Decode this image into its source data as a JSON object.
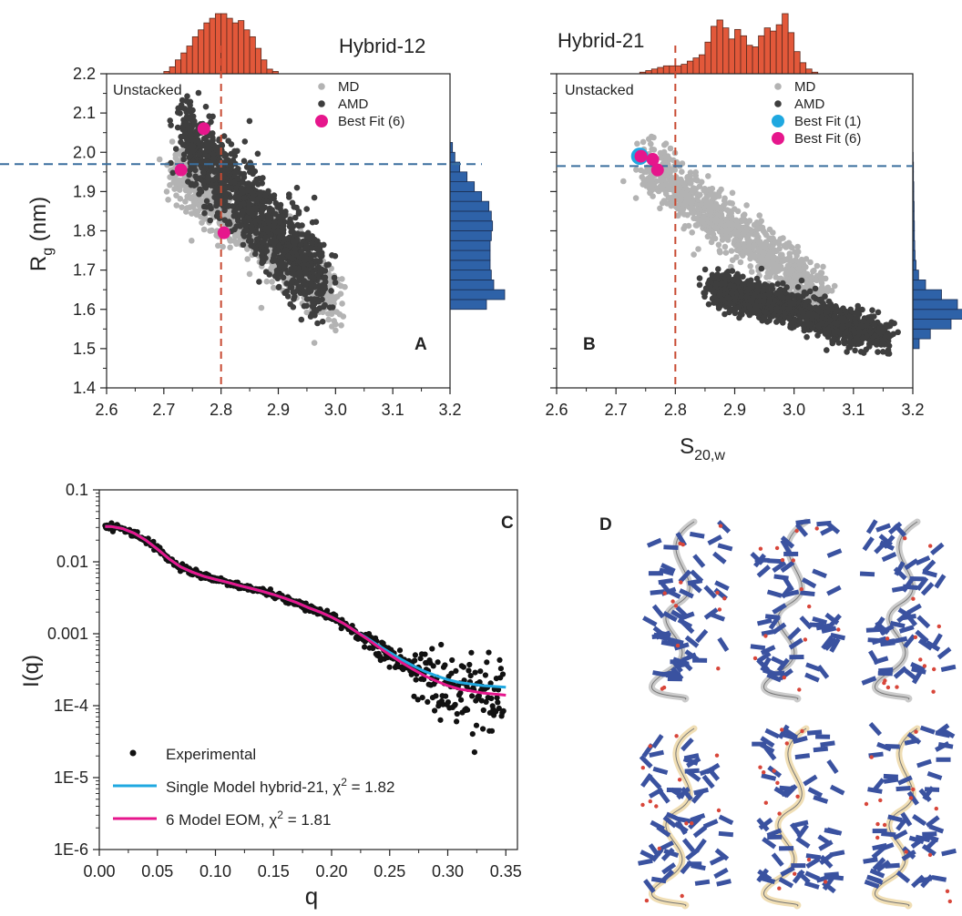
{
  "colors": {
    "md": "#b3b3b3",
    "amd": "#3e3e3e",
    "best6": "#e6168c",
    "best1": "#1fa8e0",
    "hist_top": "#e2583a",
    "hist_right": "#2e62a8",
    "ref_v": "#c84a32",
    "ref_h": "#3a6f9e",
    "exp": "#111111",
    "fit_single": "#1fa8e0",
    "fit_eom": "#e6168c",
    "rna_blue": "#3a52a0",
    "rna_grey": "#c8c8c8",
    "rna_cream": "#efdcb0"
  },
  "shared": {
    "ylabel_main": "R",
    "ylabel_sub": "g",
    "ylabel_unit": " (nm)",
    "xlabel_main": "S",
    "xlabel_sub": "20,w"
  },
  "chart_data": [
    {
      "id": "A",
      "type": "scatter",
      "panel_label": "A",
      "title": "Hybrid-12",
      "annotation": "Unstacked",
      "xlim": [
        2.6,
        3.2
      ],
      "ylim": [
        1.4,
        2.2
      ],
      "xticks": [
        "2.6",
        "2.7",
        "2.8",
        "2.9",
        "3.0",
        "3.1",
        "3.2"
      ],
      "yticks": [
        "1.4",
        "1.5",
        "1.6",
        "1.7",
        "1.8",
        "1.9",
        "2.0",
        "2.1",
        "2.2"
      ],
      "ref_x": 2.8,
      "ref_y": 1.97,
      "legend": [
        {
          "label": "MD",
          "marker": "small",
          "color_key": "md"
        },
        {
          "label": "AMD",
          "marker": "small",
          "color_key": "amd"
        },
        {
          "label": "Best Fit (6)",
          "marker": "large",
          "color_key": "best6"
        }
      ],
      "clouds": [
        {
          "series": "MD",
          "color_key": "md",
          "n": 900,
          "x0": 2.72,
          "x1": 3.0,
          "y0": 1.96,
          "y1": 1.62,
          "spread": 0.04
        },
        {
          "series": "AMD",
          "color_key": "amd",
          "n": 1200,
          "x0": 2.73,
          "x1": 2.98,
          "y0": 2.05,
          "y1": 1.66,
          "spread": 0.055
        }
      ],
      "best_fit": [
        {
          "series": "Best Fit (6)",
          "color_key": "best6",
          "points": [
            [
              2.77,
              2.06
            ],
            [
              2.73,
              1.955
            ],
            [
              2.805,
              1.795
            ]
          ]
        }
      ],
      "hist_top": {
        "x_edges_start": 2.7,
        "bin": 0.01,
        "values": [
          1,
          3,
          6,
          9,
          12,
          16,
          19,
          22,
          24,
          26,
          26,
          24,
          22,
          23,
          19,
          16,
          11,
          6,
          2,
          1
        ]
      },
      "hist_right": {
        "y_edges_start": 1.6,
        "bin": 0.025,
        "values": [
          30,
          45,
          36,
          34,
          33,
          33,
          33,
          34,
          35,
          34,
          32,
          26,
          20,
          14,
          8,
          4,
          2
        ]
      }
    },
    {
      "id": "B",
      "type": "scatter",
      "panel_label": "B",
      "title": "Hybrid-21",
      "annotation": "Unstacked",
      "xlim": [
        2.6,
        3.2
      ],
      "ylim": [
        1.4,
        2.2
      ],
      "xticks": [
        "2.6",
        "2.7",
        "2.8",
        "2.9",
        "3.0",
        "3.1",
        "3.2"
      ],
      "yticks": [
        "1.4",
        "1.5",
        "1.6",
        "1.7",
        "1.8",
        "1.9",
        "2.0",
        "2.1",
        "2.2"
      ],
      "ref_x": 2.8,
      "ref_y": 1.965,
      "legend": [
        {
          "label": "MD",
          "marker": "small",
          "color_key": "md"
        },
        {
          "label": "AMD",
          "marker": "small",
          "color_key": "amd"
        },
        {
          "label": "Best Fit (1)",
          "marker": "large",
          "color_key": "best1"
        },
        {
          "label": "Best Fit (6)",
          "marker": "large",
          "color_key": "best6"
        }
      ],
      "clouds": [
        {
          "series": "MD",
          "color_key": "md",
          "n": 1000,
          "x0": 2.75,
          "x1": 3.05,
          "y0": 1.97,
          "y1": 1.63,
          "spread": 0.035
        },
        {
          "series": "AMD",
          "color_key": "amd",
          "n": 1300,
          "x0": 2.86,
          "x1": 3.15,
          "y0": 1.66,
          "y1": 1.53,
          "spread": 0.025
        }
      ],
      "best_fit": [
        {
          "series": "Best Fit (1)",
          "color_key": "best1",
          "points": [
            [
              2.74,
              1.99
            ]
          ]
        },
        {
          "series": "Best Fit (6)",
          "color_key": "best6",
          "points": [
            [
              2.742,
              1.99
            ],
            [
              2.762,
              1.982
            ],
            [
              2.77,
              1.955
            ]
          ]
        }
      ],
      "hist_top": {
        "x_edges_start": 2.74,
        "bin": 0.01,
        "values": [
          1,
          2,
          3,
          4,
          5,
          5,
          5,
          6,
          8,
          10,
          12,
          20,
          30,
          34,
          29,
          22,
          28,
          24,
          18,
          17,
          24,
          29,
          27,
          31,
          38,
          26,
          14,
          7,
          3,
          1
        ]
      },
      "hist_right": {
        "y_edges_start": 1.5,
        "bin": 0.025,
        "values": [
          20,
          55,
          120,
          160,
          140,
          90,
          40,
          18,
          10,
          7,
          6,
          5,
          5,
          4,
          4,
          3,
          3,
          2,
          2,
          1
        ]
      }
    },
    {
      "id": "C",
      "type": "scatter",
      "panel_label": "C",
      "xlabel": "q",
      "ylabel": "I(q)",
      "yscale": "log",
      "xlim": [
        0.0,
        0.36
      ],
      "ylim": [
        1e-06,
        0.1
      ],
      "xticks": [
        "0.00",
        "0.05",
        "0.10",
        "0.15",
        "0.20",
        "0.25",
        "0.30",
        "0.35"
      ],
      "yticks": [
        "1E-6",
        "1E-5",
        "1E-4",
        "0.001",
        "0.01",
        "0.1"
      ],
      "legend": [
        {
          "label": "Experimental",
          "marker": "dot",
          "color_key": "exp"
        },
        {
          "label": "Single Model hybrid-21, χ",
          "sup": "2",
          "tail": " = 1.82",
          "marker": "line",
          "color_key": "fit_single"
        },
        {
          "label": "6 Model EOM, χ",
          "sup": "2",
          "tail": " = 1.81",
          "marker": "line",
          "color_key": "fit_eom"
        }
      ],
      "series": [
        {
          "name": "Experimental",
          "kind": "points",
          "color_key": "exp",
          "x_start": 0.005,
          "x_end": 0.348,
          "n": 620
        },
        {
          "name": "Single Model hybrid-21",
          "kind": "line",
          "color_key": "fit_single",
          "x": [
            0.005,
            0.01,
            0.02,
            0.03,
            0.04,
            0.05,
            0.06,
            0.07,
            0.08,
            0.09,
            0.1,
            0.11,
            0.12,
            0.13,
            0.14,
            0.15,
            0.16,
            0.17,
            0.18,
            0.19,
            0.2,
            0.21,
            0.22,
            0.23,
            0.24,
            0.25,
            0.26,
            0.27,
            0.28,
            0.29,
            0.3,
            0.31,
            0.32,
            0.33,
            0.34,
            0.35
          ],
          "y": [
            0.031,
            0.031,
            0.029,
            0.025,
            0.02,
            0.015,
            0.011,
            0.0085,
            0.0072,
            0.0063,
            0.0057,
            0.0052,
            0.0047,
            0.0043,
            0.0039,
            0.0035,
            0.0031,
            0.0027,
            0.0023,
            0.002,
            0.0017,
            0.0014,
            0.0011,
            0.00088,
            0.00069,
            0.00055,
            0.00044,
            0.00036,
            0.0003,
            0.00026,
            0.00023,
            0.00021,
            0.0002,
            0.00019,
            0.000185,
            0.00018
          ]
        },
        {
          "name": "6 Model EOM",
          "kind": "line",
          "color_key": "fit_eom",
          "x": [
            0.005,
            0.01,
            0.02,
            0.03,
            0.04,
            0.05,
            0.06,
            0.07,
            0.08,
            0.09,
            0.1,
            0.11,
            0.12,
            0.13,
            0.14,
            0.15,
            0.16,
            0.17,
            0.18,
            0.19,
            0.2,
            0.21,
            0.22,
            0.23,
            0.24,
            0.25,
            0.26,
            0.27,
            0.28,
            0.29,
            0.3,
            0.31,
            0.32,
            0.33,
            0.34,
            0.35
          ],
          "y": [
            0.031,
            0.031,
            0.029,
            0.025,
            0.02,
            0.015,
            0.011,
            0.0085,
            0.0072,
            0.0063,
            0.0057,
            0.0052,
            0.0047,
            0.0043,
            0.0039,
            0.0035,
            0.0031,
            0.0027,
            0.0023,
            0.002,
            0.0017,
            0.0014,
            0.0011,
            0.00086,
            0.00066,
            0.00051,
            0.0004,
            0.00032,
            0.00026,
            0.00022,
            0.00019,
            0.00017,
            0.00016,
            0.00015,
            0.000145,
            0.00014
          ]
        }
      ]
    }
  ],
  "panel_d": {
    "label": "D"
  }
}
